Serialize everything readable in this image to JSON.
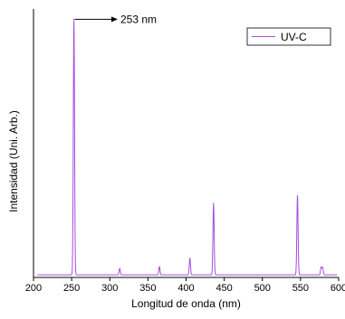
{
  "chart_data": {
    "type": "line",
    "xlabel": "Longitud de onda (nm)",
    "ylabel": "Intensidad (Uni. Arb.)",
    "xlim": [
      200,
      600
    ],
    "ylim": [
      0,
      1.05
    ],
    "xticks": [
      200,
      250,
      300,
      350,
      400,
      450,
      500,
      550,
      600
    ],
    "xtick_labels": [
      "200",
      "250",
      "300",
      "350",
      "400",
      "450",
      "500",
      "550",
      "600"
    ],
    "yticks_shown": false,
    "legend": {
      "position": "top-right",
      "entries": [
        "UV-C"
      ]
    },
    "annotation": {
      "text": "253 nm",
      "x": 253,
      "y": 1.0
    },
    "series": [
      {
        "name": "UV-C",
        "color": "#a84be0",
        "baseline": 0.01,
        "peaks": [
          {
            "x": 253,
            "height": 1.0
          },
          {
            "x": 313,
            "height": 0.025
          },
          {
            "x": 365,
            "height": 0.032
          },
          {
            "x": 405,
            "height": 0.065
          },
          {
            "x": 436,
            "height": 0.28
          },
          {
            "x": 546,
            "height": 0.31
          },
          {
            "x": 577,
            "height": 0.03
          },
          {
            "x": 579,
            "height": 0.028
          }
        ]
      }
    ]
  }
}
